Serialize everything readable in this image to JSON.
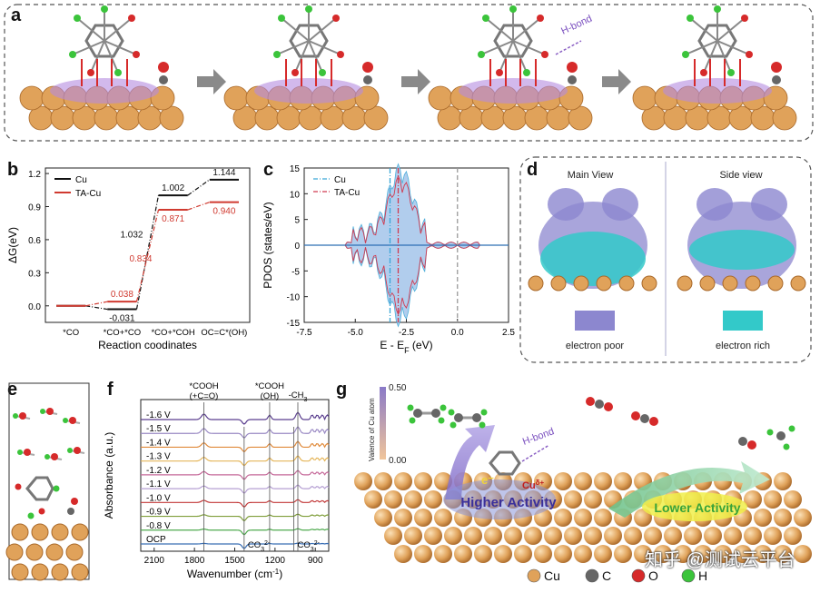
{
  "panels": {
    "a": {
      "letter": "a",
      "annotation": "H-bond"
    },
    "b": {
      "letter": "b"
    },
    "c": {
      "letter": "c"
    },
    "d": {
      "letter": "d",
      "main_view": "Main View",
      "side_view": "Side view",
      "legend_poor": "electron poor",
      "legend_rich": "electron rich",
      "colors": {
        "poor": "#8c87cf",
        "rich": "#33c9c9"
      }
    },
    "e": {
      "letter": "e"
    },
    "f": {
      "letter": "f"
    },
    "g": {
      "letter": "g",
      "colorbar_label": "Valence of Cu atom",
      "colorbar_max": "0.50",
      "colorbar_min": "0.00",
      "hbond": "H-bond",
      "electron": "e⁻",
      "cu_ion": "Cu",
      "cu_ion_sup": "δ+",
      "higher": "Higher Activity",
      "lower": "Lower Activity"
    }
  },
  "legend_atoms": [
    {
      "symbol": "Cu",
      "color": "#e0a25a"
    },
    {
      "symbol": "C",
      "color": "#666666"
    },
    {
      "symbol": "O",
      "color": "#d62a2a"
    },
    {
      "symbol": "H",
      "color": "#3bc43b"
    }
  ],
  "watermark": "知乎 @测试云平台",
  "chart_data": [
    {
      "id": "b",
      "type": "line",
      "ylabel": "ΔG(eV)",
      "xlabel": "Reaction coodinates",
      "categories": [
        "*CO",
        "*CO+*CO",
        "*CO+*COH",
        "OC=C*(OH)"
      ],
      "ylim": [
        -0.15,
        1.25
      ],
      "yticks": [
        "0.0",
        "0.3",
        "0.6",
        "0.9",
        "1.2"
      ],
      "series": [
        {
          "name": "Cu",
          "color": "#111111",
          "values": [
            0.0,
            -0.031,
            1.002,
            1.144
          ],
          "labels": [
            "",
            "-0.031",
            "1.002",
            "1.144"
          ],
          "step_labels": [
            "",
            "1.032",
            ""
          ]
        },
        {
          "name": "TA-Cu",
          "color": "#d03a30",
          "values": [
            0.0,
            0.038,
            0.871,
            0.94
          ],
          "labels": [
            "",
            "0.038",
            "0.871",
            "0.940"
          ],
          "step_labels": [
            "",
            "0.834",
            ""
          ]
        }
      ]
    },
    {
      "id": "c",
      "type": "area",
      "ylabel": "PDOS (states/eV)",
      "xlabel": "E - E",
      "xlabel_sub": "F",
      "xlabel_unit": " (eV)",
      "xlim": [
        -7.5,
        2.5
      ],
      "ylim": [
        -15,
        15
      ],
      "xticks": [
        "-7.5",
        "-5.0",
        "-2.5",
        "0.0",
        "2.5"
      ],
      "yticks": [
        "15",
        "10",
        "5",
        "0",
        "-5",
        "-10",
        "-15"
      ],
      "series": [
        {
          "name": "Cu",
          "color": "#3aa6d6",
          "d_band_center": -3.3
        },
        {
          "name": "TA-Cu",
          "color": "#d03a50",
          "d_band_center": -2.9
        }
      ],
      "fermi": 0.0
    },
    {
      "id": "f",
      "type": "line",
      "ylabel": "Absorbance (a.u.)",
      "xlabel": "Wavenumber (cm",
      "xlabel_sup": "-1",
      "xlabel_end": ")",
      "xticks": [
        "2100",
        "1800",
        "1500",
        "1200",
        "900"
      ],
      "xlim": [
        2200,
        800
      ],
      "series_labels": [
        "-1.6 V",
        "-1.5 V",
        "-1.4 V",
        "-1.3 V",
        "-1.2 V",
        "-1.1 V",
        "-1.0 V",
        "-0.9 V",
        "-0.8 V",
        "OCP"
      ],
      "series_colors": [
        "#5b3f8f",
        "#9a8ac4",
        "#e08b3c",
        "#e5b65a",
        "#c66a9a",
        "#b59fd3",
        "#c23a3a",
        "#7f9e3a",
        "#4faa4f",
        "#3a6fb5"
      ],
      "annotations": [
        {
          "text": "*COOH",
          "text2": "(+C=O)",
          "x": 1730
        },
        {
          "text": "*COOH",
          "text2": "(OH)",
          "x": 1240
        },
        {
          "text": "-CH",
          "sub": "3",
          "x": 1030
        },
        {
          "text": "CO",
          "sub": "3",
          "sup": "2-",
          "x": 1430
        },
        {
          "text": "CO",
          "sub": "3",
          "sup": "2-",
          "x": 1060
        }
      ]
    }
  ]
}
